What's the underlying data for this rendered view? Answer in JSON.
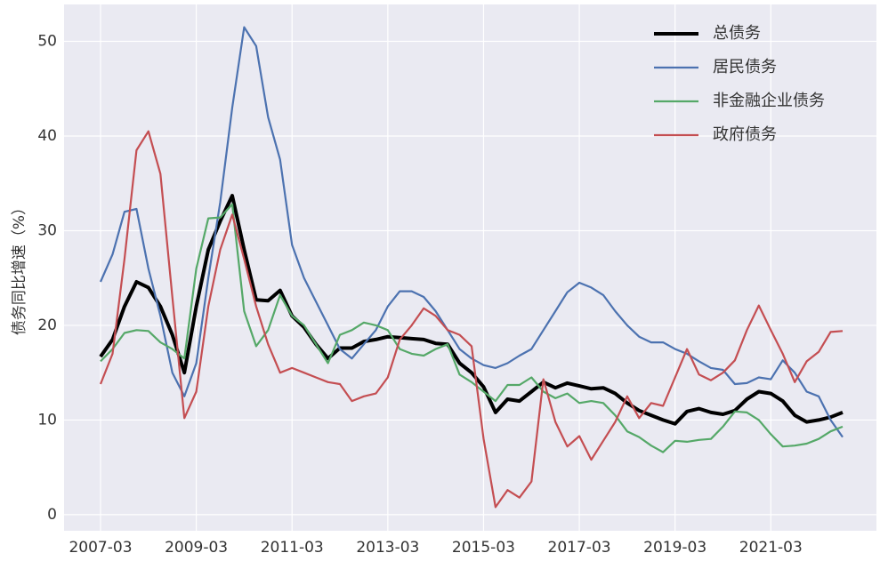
{
  "chart_data": {
    "type": "line",
    "ylabel": "债务同比增速（%）",
    "categories": [
      "2007-03",
      null,
      null,
      null,
      null,
      null,
      null,
      null,
      "2009-03",
      null,
      null,
      null,
      null,
      null,
      null,
      null,
      "2011-03",
      null,
      null,
      null,
      null,
      null,
      null,
      null,
      "2013-03",
      null,
      null,
      null,
      null,
      null,
      null,
      null,
      "2015-03",
      null,
      null,
      null,
      null,
      null,
      null,
      null,
      "2017-03",
      null,
      null,
      null,
      null,
      null,
      null,
      null,
      "2019-03",
      null,
      null,
      null,
      null,
      null,
      null,
      null,
      "2021-03",
      null,
      null,
      null,
      null,
      null,
      null
    ],
    "series": [
      {
        "name": "总债务",
        "color": "#000000",
        "values": [
          16.7,
          18.5,
          22,
          24.6,
          24,
          22,
          19,
          15,
          22,
          28,
          31,
          33.7,
          28,
          22.7,
          22.6,
          23.7,
          21,
          19.8,
          18,
          16.5,
          17.6,
          17.6,
          18.3,
          18.5,
          18.8,
          18.7,
          18.6,
          18.5,
          18.1,
          18,
          16,
          15,
          13.5,
          10.8,
          12.2,
          12,
          13,
          14,
          13.4,
          13.9,
          13.6,
          13.3,
          13.4,
          12.8,
          11.8,
          11,
          10.5,
          10,
          9.6,
          10.9,
          11.2,
          10.8,
          10.6,
          11,
          12.2,
          13,
          12.8,
          12,
          10.5,
          9.8,
          10,
          10.3,
          10.8
        ]
      },
      {
        "name": "居民债务",
        "color": "#4c72b0",
        "values": [
          24.6,
          27.5,
          32,
          32.3,
          26,
          21,
          15,
          12.5,
          16,
          25,
          33,
          43,
          51.5,
          49.5,
          42,
          37.5,
          28.5,
          25,
          22.5,
          20,
          17.5,
          16.5,
          18,
          19.5,
          22,
          23.6,
          23.6,
          23,
          21.5,
          19.5,
          17.5,
          16.5,
          15.8,
          15.5,
          16,
          16.8,
          17.5,
          19.5,
          21.5,
          23.5,
          24.5,
          24,
          23.2,
          21.5,
          20,
          18.8,
          18.2,
          18.2,
          17.5,
          17,
          16.2,
          15.5,
          15.3,
          13.8,
          13.9,
          14.5,
          14.3,
          16.3,
          15,
          13,
          12.5,
          10,
          8.2
        ]
      },
      {
        "name": "非金融企业债务",
        "color": "#55a868",
        "values": [
          16.2,
          17.5,
          19.2,
          19.5,
          19.4,
          18.2,
          17.5,
          16.5,
          26,
          31.3,
          31.4,
          32.8,
          21.5,
          17.8,
          19.5,
          23.2,
          21,
          20,
          18,
          16,
          19,
          19.5,
          20.3,
          20,
          19.5,
          17.5,
          17,
          16.8,
          17.5,
          18,
          14.8,
          14,
          13,
          12,
          13.7,
          13.7,
          14.5,
          13,
          12.3,
          12.8,
          11.8,
          12,
          11.8,
          10.5,
          8.8,
          8.2,
          7.3,
          6.6,
          7.8,
          7.7,
          7.9,
          8,
          9.3,
          10.9,
          10.8,
          10,
          8.5,
          7.2,
          7.3,
          7.5,
          8,
          8.8,
          9.3
        ]
      },
      {
        "name": "政府债务",
        "color": "#c44e52",
        "values": [
          13.8,
          17,
          27,
          38.5,
          40.5,
          36,
          23,
          10.2,
          13,
          22,
          28,
          31.7,
          27,
          22,
          18,
          15,
          15.5,
          15,
          14.5,
          14,
          13.8,
          12,
          12.5,
          12.8,
          14.5,
          18.5,
          20,
          21.8,
          21,
          19.5,
          19,
          17.8,
          8,
          0.8,
          2.6,
          1.8,
          3.5,
          14.3,
          9.8,
          7.2,
          8.3,
          5.8,
          7.8,
          9.8,
          12.5,
          10.2,
          11.8,
          11.5,
          14.5,
          17.5,
          14.8,
          14.2,
          15,
          16.3,
          19.5,
          22.1,
          19.5,
          17,
          14,
          16.2,
          17.2,
          19.3,
          19.4
        ]
      }
    ],
    "ylim": [
      -1.7,
      53.9
    ],
    "yticks": [
      0,
      10,
      20,
      30,
      40,
      50
    ],
    "grid": true,
    "legend": "upper right"
  }
}
